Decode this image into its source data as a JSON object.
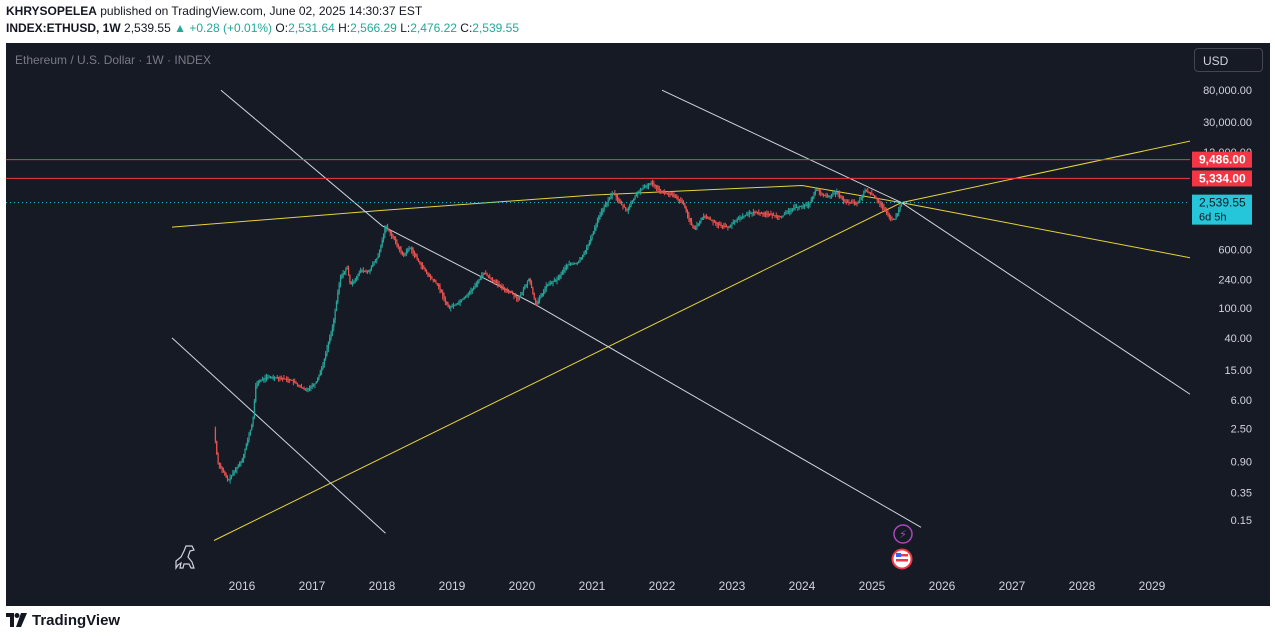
{
  "header": {
    "author": "KHRYSOPELEA",
    "published": "published on TradingView.com, June 02, 2025 14:30:37 EST",
    "symbol": "INDEX:ETHUSD, 1W",
    "price": "2,539.55",
    "change": "+0.28 (+0.01%)",
    "o_label": "O:",
    "o_value": "2,531.64",
    "h_label": "H:",
    "h_value": "2,566.29",
    "l_label": "L:",
    "l_value": "2,476.22",
    "c_label": "C:",
    "c_value": "2,539.55"
  },
  "watermark": "Ethereum / U.S. Dollar · 1W · INDEX",
  "currency_button": "USD",
  "footer": {
    "brand": "TradingView"
  },
  "colors": {
    "background": "#161a25",
    "up": "#26a69a",
    "down": "#ef5350",
    "trendline_yellow": "#e6d33a",
    "trendline_white": "#d1d4dc",
    "resistance_red": "#f23645",
    "last_price": "#26c6da"
  },
  "chart_data": {
    "type": "candlestick",
    "title": "Ethereum / U.S. Dollar · 1W · INDEX",
    "y_scale": "log",
    "y_ticks": [
      "80,000.00",
      "30,000.00",
      "12,000.00",
      "600.00",
      "240.00",
      "100.00",
      "40.00",
      "15.00",
      "6.00",
      "2.50",
      "0.90",
      "0.35",
      "0.15"
    ],
    "y_tick_values": [
      80000,
      30000,
      12000,
      600,
      240,
      100,
      40,
      15,
      6,
      2.5,
      0.9,
      0.35,
      0.15
    ],
    "x_ticks": [
      "2016",
      "2017",
      "2018",
      "2019",
      "2020",
      "2021",
      "2022",
      "2023",
      "2024",
      "2025",
      "2026",
      "2027",
      "2028",
      "2029"
    ],
    "x_tick_values": [
      2016,
      2017,
      2018,
      2019,
      2020,
      2021,
      2022,
      2023,
      2024,
      2025,
      2026,
      2027,
      2028,
      2029
    ],
    "price_path": [
      [
        2015.6,
        2.5
      ],
      [
        2015.65,
        0.9
      ],
      [
        2015.8,
        0.5
      ],
      [
        2016.0,
        0.95
      ],
      [
        2016.15,
        3.0
      ],
      [
        2016.2,
        10
      ],
      [
        2016.35,
        12
      ],
      [
        2016.5,
        12
      ],
      [
        2016.7,
        11
      ],
      [
        2016.9,
        8
      ],
      [
        2017.05,
        10
      ],
      [
        2017.15,
        17
      ],
      [
        2017.3,
        60
      ],
      [
        2017.4,
        250
      ],
      [
        2017.5,
        350
      ],
      [
        2017.55,
        200
      ],
      [
        2017.7,
        320
      ],
      [
        2017.8,
        300
      ],
      [
        2017.95,
        500
      ],
      [
        2018.05,
        1250
      ],
      [
        2018.15,
        900
      ],
      [
        2018.3,
        500
      ],
      [
        2018.4,
        650
      ],
      [
        2018.5,
        450
      ],
      [
        2018.65,
        280
      ],
      [
        2018.8,
        200
      ],
      [
        2018.95,
        100
      ],
      [
        2019.1,
        120
      ],
      [
        2019.3,
        180
      ],
      [
        2019.45,
        300
      ],
      [
        2019.55,
        250
      ],
      [
        2019.7,
        190
      ],
      [
        2019.85,
        160
      ],
      [
        2019.95,
        130
      ],
      [
        2020.1,
        250
      ],
      [
        2020.2,
        110
      ],
      [
        2020.35,
        200
      ],
      [
        2020.5,
        240
      ],
      [
        2020.65,
        380
      ],
      [
        2020.8,
        400
      ],
      [
        2020.95,
        700
      ],
      [
        2021.1,
        1700
      ],
      [
        2021.3,
        3500
      ],
      [
        2021.4,
        2500
      ],
      [
        2021.5,
        2000
      ],
      [
        2021.65,
        3500
      ],
      [
        2021.85,
        4700
      ],
      [
        2022.0,
        3500
      ],
      [
        2022.15,
        3200
      ],
      [
        2022.3,
        2500
      ],
      [
        2022.45,
        1100
      ],
      [
        2022.6,
        1700
      ],
      [
        2022.8,
        1300
      ],
      [
        2022.95,
        1200
      ],
      [
        2023.1,
        1600
      ],
      [
        2023.3,
        1900
      ],
      [
        2023.5,
        1800
      ],
      [
        2023.7,
        1650
      ],
      [
        2023.9,
        2200
      ],
      [
        2024.1,
        2400
      ],
      [
        2024.2,
        3800
      ],
      [
        2024.35,
        3000
      ],
      [
        2024.5,
        3500
      ],
      [
        2024.6,
        2600
      ],
      [
        2024.8,
        2500
      ],
      [
        2024.9,
        3700
      ],
      [
        2025.0,
        3300
      ],
      [
        2025.1,
        2600
      ],
      [
        2025.25,
        1600
      ],
      [
        2025.32,
        1500
      ],
      [
        2025.36,
        1800
      ],
      [
        2025.42,
        2539.55
      ]
    ],
    "trendlines": [
      {
        "color": "yellow",
        "points": [
          [
            2015.0,
            1200
          ],
          [
            2018.0,
            2000
          ],
          [
            2021.0,
            3200
          ],
          [
            2024.0,
            4300
          ],
          [
            2025.42,
            2539.55
          ],
          [
            2029.7,
            440
          ]
        ]
      },
      {
        "color": "yellow",
        "points": [
          [
            2015.6,
            0.08
          ],
          [
            2025.42,
            2539.55
          ],
          [
            2029.7,
            18000
          ]
        ]
      },
      {
        "color": "white",
        "points": [
          [
            2015.7,
            80000
          ],
          [
            2018.0,
            1250
          ],
          [
            2020.2,
            110
          ],
          [
            2025.7,
            0.12
          ]
        ]
      },
      {
        "color": "white",
        "points": [
          [
            2015.0,
            40
          ],
          [
            2018.05,
            0.1
          ]
        ]
      },
      {
        "color": "white",
        "points": [
          [
            2022.0,
            80000
          ],
          [
            2025.42,
            2539.55
          ],
          [
            2029.7,
            5.7
          ]
        ]
      }
    ],
    "horizontal_levels": [
      {
        "label": "9,486.00",
        "value": 9486
      },
      {
        "label": "5,334.00",
        "value": 5334
      }
    ],
    "last_price": {
      "label": "2,539.55",
      "countdown": "6d 5h",
      "value": 2539.55
    }
  }
}
